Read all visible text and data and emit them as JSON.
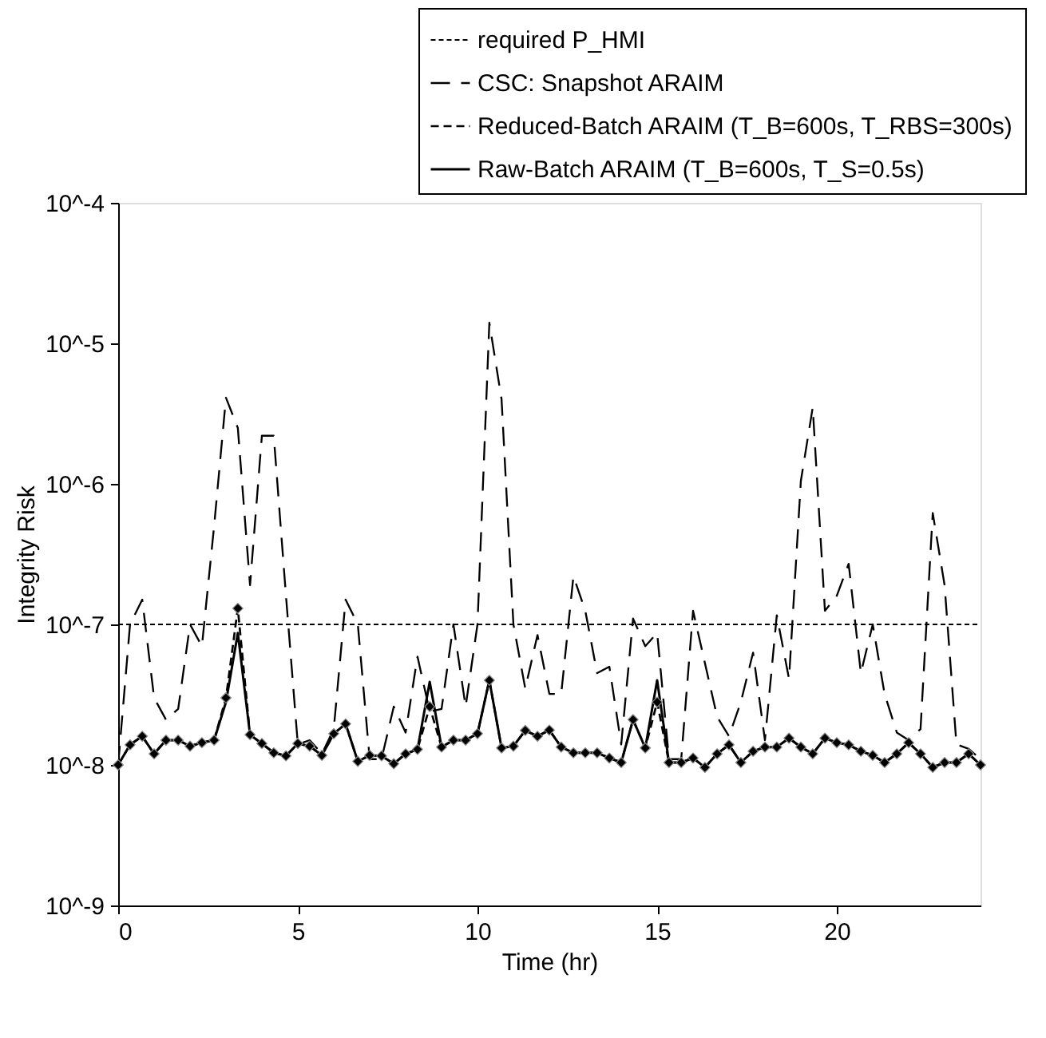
{
  "chart_data": {
    "type": "line",
    "xlabel": "Time (hr)",
    "ylabel": "Integrity Risk",
    "x": [
      0,
      0.33,
      0.67,
      1,
      1.33,
      1.67,
      2,
      2.33,
      2.67,
      3,
      3.33,
      3.67,
      4,
      4.33,
      4.67,
      5,
      5.33,
      5.67,
      6,
      6.33,
      6.67,
      7,
      7.33,
      7.67,
      8,
      8.33,
      8.67,
      9,
      9.33,
      9.67,
      10,
      10.33,
      10.67,
      11,
      11.33,
      11.67,
      12,
      12.33,
      12.67,
      13,
      13.33,
      13.67,
      14,
      14.33,
      14.67,
      15,
      15.33,
      15.67,
      16,
      16.33,
      16.67,
      17,
      17.33,
      17.67,
      18,
      18.33,
      18.67,
      19,
      19.33,
      19.67,
      20,
      20.33,
      20.67,
      21,
      21.33,
      21.67,
      22,
      22.33,
      22.67,
      23,
      23.33,
      23.67,
      24
    ],
    "series": [
      {
        "name": "CSC: Snapshot ARAIM",
        "color": "#000000",
        "line_style": "dashed",
        "marker": "none",
        "values": [
          1e-08,
          1e-07,
          1.5e-07,
          3e-08,
          2.1e-08,
          2.5e-08,
          1e-07,
          7e-08,
          5e-07,
          4.1e-06,
          2.5e-06,
          1.9e-07,
          2.2e-06,
          2.2e-06,
          1.6e-07,
          1.4e-08,
          1.5e-08,
          1.2e-08,
          1.8e-08,
          1.5e-07,
          1e-07,
          1.1e-08,
          1.1e-08,
          2.6e-08,
          1.7e-08,
          5.9e-08,
          2.4e-08,
          2.5e-08,
          1e-07,
          2.6e-08,
          1e-07,
          1.4e-05,
          4e-06,
          1e-07,
          3.5e-08,
          8.4e-08,
          3.2e-08,
          3.2e-08,
          2.2e-07,
          1.25e-07,
          4.5e-08,
          5e-08,
          1.4e-08,
          1.1e-07,
          7e-08,
          8.7e-08,
          1.1e-08,
          1.1e-08,
          1.25e-07,
          5.3e-08,
          2.2e-08,
          1.6e-08,
          2.8e-08,
          6.3e-08,
          1.5e-08,
          1.16e-07,
          4.1e-08,
          1.05e-06,
          3.5e-06,
          1.25e-07,
          1.6e-07,
          2.7e-07,
          4.5e-08,
          1e-07,
          3.2e-08,
          1.7e-08,
          1.5e-08,
          1.8e-08,
          6.2e-07,
          1.9e-07,
          1.4e-08,
          1.3e-08,
          1.1e-08
        ]
      },
      {
        "name": "Reduced-Batch ARAIM (T_B=600s, T_RBS=300s)",
        "color": "#000000",
        "line_style": "dashed",
        "marker": "diamond",
        "values": [
          1e-08,
          1.39e-08,
          1.6e-08,
          1.2e-08,
          1.5e-08,
          1.5e-08,
          1.36e-08,
          1.44e-08,
          1.5e-08,
          3e-08,
          1.3e-07,
          1.64e-08,
          1.42e-08,
          1.22e-08,
          1.16e-08,
          1.42e-08,
          1.36e-08,
          1.17e-08,
          1.67e-08,
          1.96e-08,
          1.06e-08,
          1.17e-08,
          1.16e-08,
          1.02e-08,
          1.2e-08,
          1.29e-08,
          2.6e-08,
          1.34e-08,
          1.5e-08,
          1.5e-08,
          1.67e-08,
          4e-08,
          1.32e-08,
          1.36e-08,
          1.76e-08,
          1.6e-08,
          1.77e-08,
          1.34e-08,
          1.22e-08,
          1.22e-08,
          1.22e-08,
          1.12e-08,
          1.04e-08,
          2.1e-08,
          1.32e-08,
          2.8e-08,
          1.04e-08,
          1.04e-08,
          1.12e-08,
          9.6e-09,
          1.2e-08,
          1.39e-08,
          1.04e-08,
          1.25e-08,
          1.34e-08,
          1.34e-08,
          1.55e-08,
          1.34e-08,
          1.2e-08,
          1.55e-08,
          1.44e-08,
          1.39e-08,
          1.25e-08,
          1.17e-08,
          1.04e-08,
          1.2e-08,
          1.44e-08,
          1.2e-08,
          9.6e-09,
          1.04e-08,
          1.04e-08,
          1.2e-08,
          1e-08
        ]
      },
      {
        "name": "Raw-Batch ARAIM (T_B=600s, T_S=0.5s)",
        "color": "#000000",
        "line_style": "solid",
        "marker": "none",
        "values": [
          1e-08,
          1.39e-08,
          1.6e-08,
          1.2e-08,
          1.5e-08,
          1.5e-08,
          1.36e-08,
          1.44e-08,
          1.5e-08,
          2.8e-08,
          8.7e-08,
          1.64e-08,
          1.42e-08,
          1.22e-08,
          1.16e-08,
          1.42e-08,
          1.36e-08,
          1.17e-08,
          1.67e-08,
          1.96e-08,
          1.06e-08,
          1.17e-08,
          1.16e-08,
          1.02e-08,
          1.2e-08,
          1.29e-08,
          3.9e-08,
          1.34e-08,
          1.5e-08,
          1.5e-08,
          1.67e-08,
          4e-08,
          1.32e-08,
          1.36e-08,
          1.76e-08,
          1.6e-08,
          1.77e-08,
          1.34e-08,
          1.22e-08,
          1.22e-08,
          1.22e-08,
          1.12e-08,
          1.04e-08,
          2.1e-08,
          1.32e-08,
          4e-08,
          1.04e-08,
          1.04e-08,
          1.12e-08,
          9.6e-09,
          1.2e-08,
          1.39e-08,
          1.04e-08,
          1.25e-08,
          1.34e-08,
          1.34e-08,
          1.55e-08,
          1.34e-08,
          1.2e-08,
          1.55e-08,
          1.44e-08,
          1.39e-08,
          1.25e-08,
          1.17e-08,
          1.04e-08,
          1.2e-08,
          1.44e-08,
          1.2e-08,
          9.6e-09,
          1.04e-08,
          1.04e-08,
          1.2e-08,
          1e-08
        ]
      }
    ],
    "ref_lines": [
      {
        "axis": "y",
        "value": 1e-07,
        "label": "required P_HMI",
        "color": "#000000",
        "line_style": "dashed"
      }
    ],
    "xlim": [
      0,
      24
    ],
    "xticks": [
      0,
      5,
      10,
      15,
      20
    ],
    "ylim": [
      1e-09,
      0.0001
    ],
    "log": true,
    "yticks": [
      {
        "value": 1e-09,
        "label": "10^-9"
      },
      {
        "value": 1e-08,
        "label": "10^-8"
      },
      {
        "value": 1e-07,
        "label": "10^-7"
      },
      {
        "value": 1e-06,
        "label": "10^-6"
      },
      {
        "value": 1e-05,
        "label": "10^-5"
      },
      {
        "value": 0.0001,
        "label": "10^-4"
      }
    ],
    "grid": false,
    "legend": "top right"
  }
}
